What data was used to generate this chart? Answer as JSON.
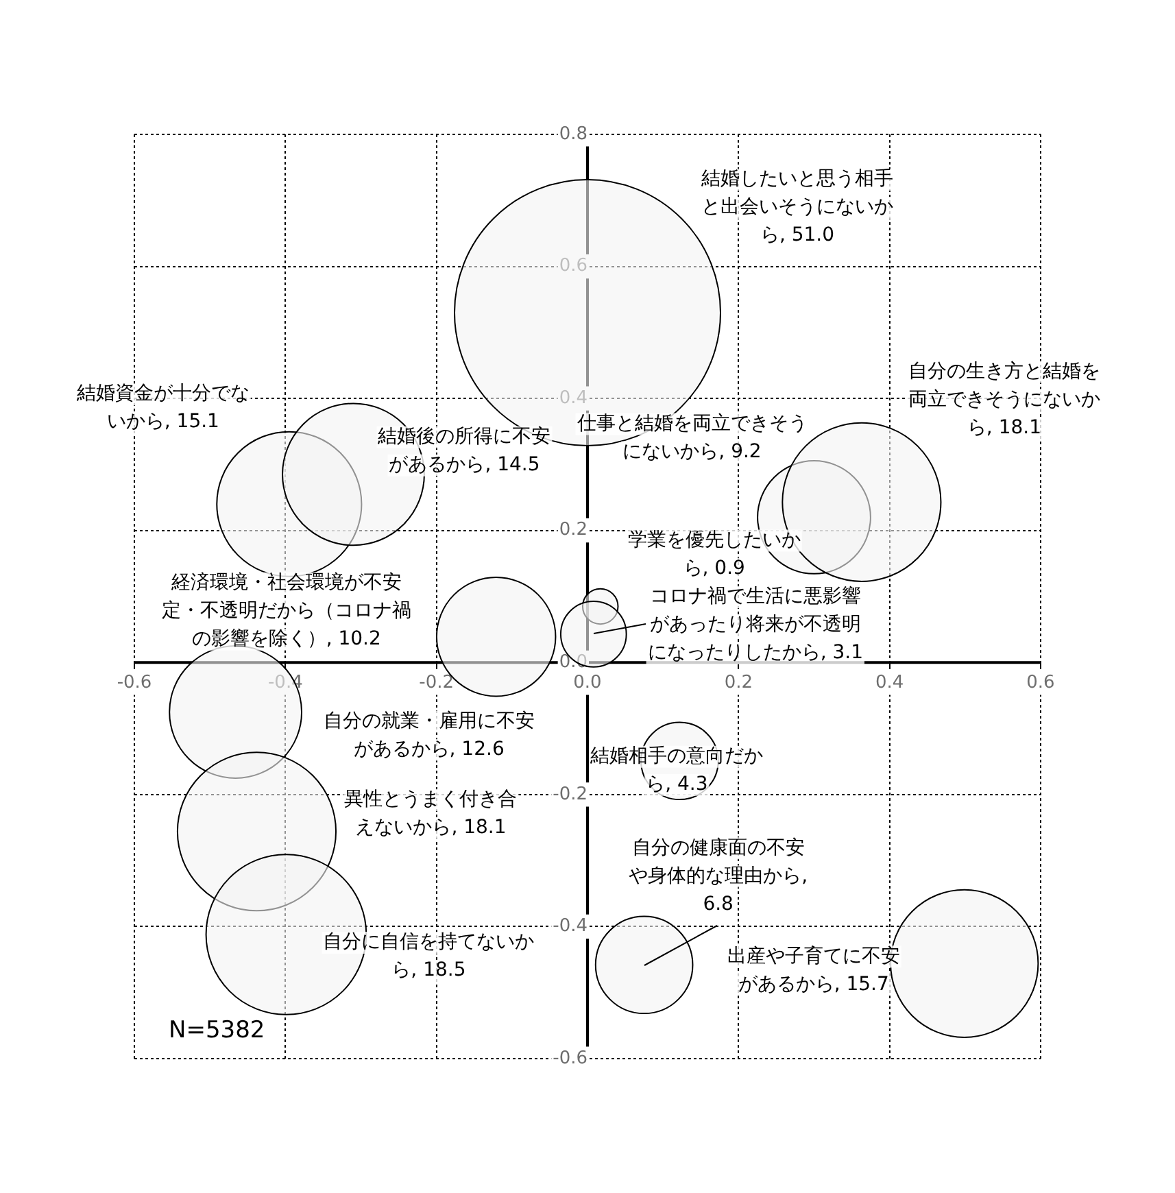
{
  "chart_data": {
    "type": "bubble",
    "x": [
      0.0,
      -0.395,
      -0.31,
      0.3,
      0.363,
      0.017,
      0.008,
      -0.121,
      -0.466,
      -0.438,
      -0.399,
      0.122,
      0.075,
      0.499
    ],
    "values": [
      0.53,
      0.24,
      0.285,
      0.22,
      0.243,
      0.085,
      0.043,
      0.039,
      -0.075,
      -0.256,
      -0.412,
      -0.149,
      -0.458,
      -0.456
    ],
    "sizes": [
      51.0,
      15.1,
      14.5,
      9.2,
      18.1,
      0.9,
      3.1,
      10.2,
      12.6,
      18.1,
      18.5,
      4.3,
      6.8,
      15.7
    ],
    "value_labels": [
      "結婚したいと思う相手と出会いそうにないから, 51.0",
      "結婚資金が十分でないから, 15.1",
      "結婚後の所得に不安があるから, 14.5",
      "仕事と結婚を両立できそうにないから, 9.2",
      "自分の生き方と結婚を両立できそうにないから, 18.1",
      "学業を優先したいから, 0.9",
      "コロナ禍で生活に悪影響があったり将来が不透明になったりしたから, 3.1",
      "経済環境・社会環境が不安定・不透明だから（コロナ禍の影響を除く）, 10.2",
      "自分の就業・雇用に不安があるから, 12.6",
      "異性とうまく付き合えないから, 18.1",
      "自分に自信を持てないから, 18.5",
      "結婚相手の意向だから, 4.3",
      "自分の健康面の不安や身体的な理由から, 6.8",
      "出産や子育てに不安があるから, 15.7"
    ],
    "color": "#f3f3f3",
    "xlim": [
      -0.6,
      0.6
    ],
    "xticks": [
      -0.6,
      -0.4,
      -0.2,
      {
        "value": 0,
        "label": "0.0"
      },
      0.2,
      0.4,
      0.6
    ],
    "ylim": [
      -0.6,
      0.8
    ],
    "yticks": [
      -0.6,
      -0.4,
      -0.2,
      {
        "value": 0,
        "label": "0.0"
      },
      0.2,
      0.4,
      0.6,
      0.8
    ],
    "grid": true,
    "annotations": [
      "N=5382"
    ]
  }
}
